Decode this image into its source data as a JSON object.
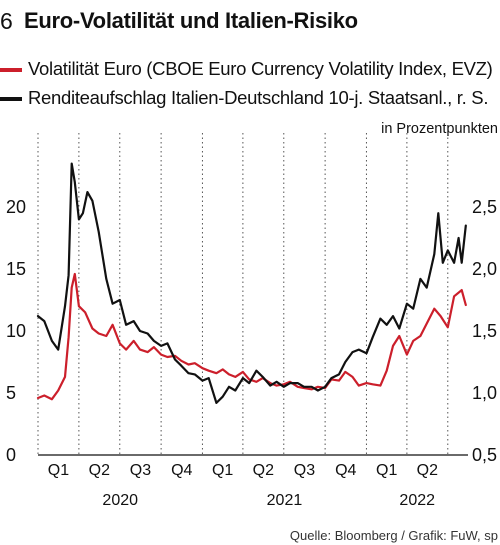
{
  "figure_number": "6",
  "title": "Euro-Volatilität und Italien-Risiko",
  "legend": [
    {
      "label": "Volatilität Euro (CBOE Euro Currency Volatility Index, EVZ)",
      "color": "#cc1f2b"
    },
    {
      "label": "Renditeaufschlag Italien-Deutschland 10-j. Staatsanl., r. S.",
      "color": "#111111"
    }
  ],
  "right_axis_unit": "in Prozentpunkten",
  "source": "Quelle: Bloomberg / Grafik: FuW, sp",
  "chart_data": {
    "type": "line",
    "left_axis": {
      "ticks": [
        "0",
        "5",
        "10",
        "15",
        "20"
      ],
      "ylim": [
        0,
        25
      ]
    },
    "right_axis": {
      "ticks": [
        "0,5",
        "1,0",
        "1,5",
        "2,0",
        "2,5"
      ],
      "ylim": [
        0.5,
        3.0
      ]
    },
    "x_quarter_labels": [
      "Q1",
      "Q2",
      "Q3",
      "Q4",
      "Q1",
      "Q2",
      "Q3",
      "Q4",
      "Q1",
      "Q2"
    ],
    "x_year_labels": [
      "2020",
      "2021",
      "2022"
    ],
    "xlim": [
      "2020-01-01",
      "2022-08-15"
    ],
    "grid": "vertical dotted",
    "series": [
      {
        "name": "Volatilität Euro (CBOE Euro Currency Volatility Index, EVZ)",
        "axis": "left",
        "color": "#cc1f2b",
        "x": [
          "2020-01-01",
          "2020-01-15",
          "2020-02-01",
          "2020-02-15",
          "2020-03-01",
          "2020-03-09",
          "2020-03-16",
          "2020-03-23",
          "2020-04-01",
          "2020-04-15",
          "2020-05-01",
          "2020-05-15",
          "2020-06-01",
          "2020-06-15",
          "2020-07-01",
          "2020-07-15",
          "2020-08-01",
          "2020-08-15",
          "2020-09-01",
          "2020-09-15",
          "2020-10-01",
          "2020-10-15",
          "2020-11-01",
          "2020-11-15",
          "2020-12-01",
          "2020-12-15",
          "2021-01-01",
          "2021-01-15",
          "2021-02-01",
          "2021-02-15",
          "2021-03-01",
          "2021-03-15",
          "2021-04-01",
          "2021-04-15",
          "2021-05-01",
          "2021-05-15",
          "2021-06-01",
          "2021-06-15",
          "2021-07-01",
          "2021-07-15",
          "2021-08-01",
          "2021-08-15",
          "2021-09-01",
          "2021-09-15",
          "2021-10-01",
          "2021-10-15",
          "2021-11-01",
          "2021-11-15",
          "2021-12-01",
          "2021-12-15",
          "2022-01-01",
          "2022-01-15",
          "2022-02-01",
          "2022-02-15",
          "2022-03-01",
          "2022-03-15",
          "2022-04-01",
          "2022-04-15",
          "2022-05-01",
          "2022-05-15",
          "2022-06-01",
          "2022-06-15",
          "2022-07-01",
          "2022-07-15",
          "2022-08-01",
          "2022-08-10"
        ],
        "values": [
          4.6,
          4.8,
          4.5,
          5.2,
          6.3,
          9.5,
          13.5,
          14.6,
          12.0,
          11.5,
          10.2,
          9.8,
          9.6,
          10.5,
          9.0,
          8.5,
          9.2,
          8.5,
          8.3,
          8.7,
          8.1,
          7.9,
          8.0,
          7.6,
          7.3,
          7.4,
          7.0,
          6.8,
          6.6,
          6.9,
          6.5,
          6.3,
          6.7,
          6.1,
          5.9,
          6.2,
          5.8,
          5.6,
          5.7,
          5.9,
          5.5,
          5.4,
          5.3,
          5.5,
          5.4,
          6.1,
          6.0,
          6.7,
          6.3,
          5.6,
          5.8,
          5.7,
          5.6,
          6.8,
          8.8,
          9.6,
          8.1,
          9.2,
          9.6,
          10.6,
          11.8,
          11.2,
          10.3,
          12.8,
          13.3,
          12.1
        ]
      },
      {
        "name": "Renditeaufschlag Italien-Deutschland 10-j. Staatsanl., r. S.",
        "axis": "right",
        "color": "#111111",
        "x": [
          "2020-01-01",
          "2020-01-15",
          "2020-02-01",
          "2020-02-15",
          "2020-03-01",
          "2020-03-09",
          "2020-03-16",
          "2020-03-23",
          "2020-04-01",
          "2020-04-10",
          "2020-04-20",
          "2020-05-01",
          "2020-05-15",
          "2020-06-01",
          "2020-06-15",
          "2020-07-01",
          "2020-07-15",
          "2020-08-01",
          "2020-08-15",
          "2020-09-01",
          "2020-09-15",
          "2020-10-01",
          "2020-10-15",
          "2020-11-01",
          "2020-11-15",
          "2020-12-01",
          "2020-12-15",
          "2021-01-01",
          "2021-01-15",
          "2021-02-01",
          "2021-02-15",
          "2021-03-01",
          "2021-03-15",
          "2021-04-01",
          "2021-04-15",
          "2021-05-01",
          "2021-05-15",
          "2021-06-01",
          "2021-06-15",
          "2021-07-01",
          "2021-07-15",
          "2021-08-01",
          "2021-08-15",
          "2021-09-01",
          "2021-09-15",
          "2021-10-01",
          "2021-10-15",
          "2021-11-01",
          "2021-11-15",
          "2021-12-01",
          "2021-12-15",
          "2022-01-01",
          "2022-01-15",
          "2022-02-01",
          "2022-02-15",
          "2022-03-01",
          "2022-03-15",
          "2022-04-01",
          "2022-04-15",
          "2022-05-01",
          "2022-05-15",
          "2022-06-01",
          "2022-06-10",
          "2022-06-20",
          "2022-07-01",
          "2022-07-15",
          "2022-07-25",
          "2022-08-01",
          "2022-08-10"
        ],
        "values": [
          1.62,
          1.58,
          1.42,
          1.35,
          1.7,
          1.95,
          2.85,
          2.7,
          2.4,
          2.45,
          2.62,
          2.55,
          2.3,
          1.92,
          1.72,
          1.75,
          1.55,
          1.58,
          1.5,
          1.48,
          1.42,
          1.38,
          1.4,
          1.27,
          1.22,
          1.16,
          1.15,
          1.1,
          1.12,
          0.92,
          0.97,
          1.05,
          1.02,
          1.12,
          1.08,
          1.18,
          1.13,
          1.06,
          1.09,
          1.05,
          1.08,
          1.08,
          1.05,
          1.05,
          1.02,
          1.05,
          1.12,
          1.15,
          1.25,
          1.33,
          1.35,
          1.32,
          1.45,
          1.6,
          1.55,
          1.62,
          1.52,
          1.72,
          1.68,
          1.92,
          1.85,
          2.12,
          2.45,
          2.05,
          2.15,
          2.05,
          2.25,
          2.05,
          2.35
        ]
      }
    ]
  }
}
